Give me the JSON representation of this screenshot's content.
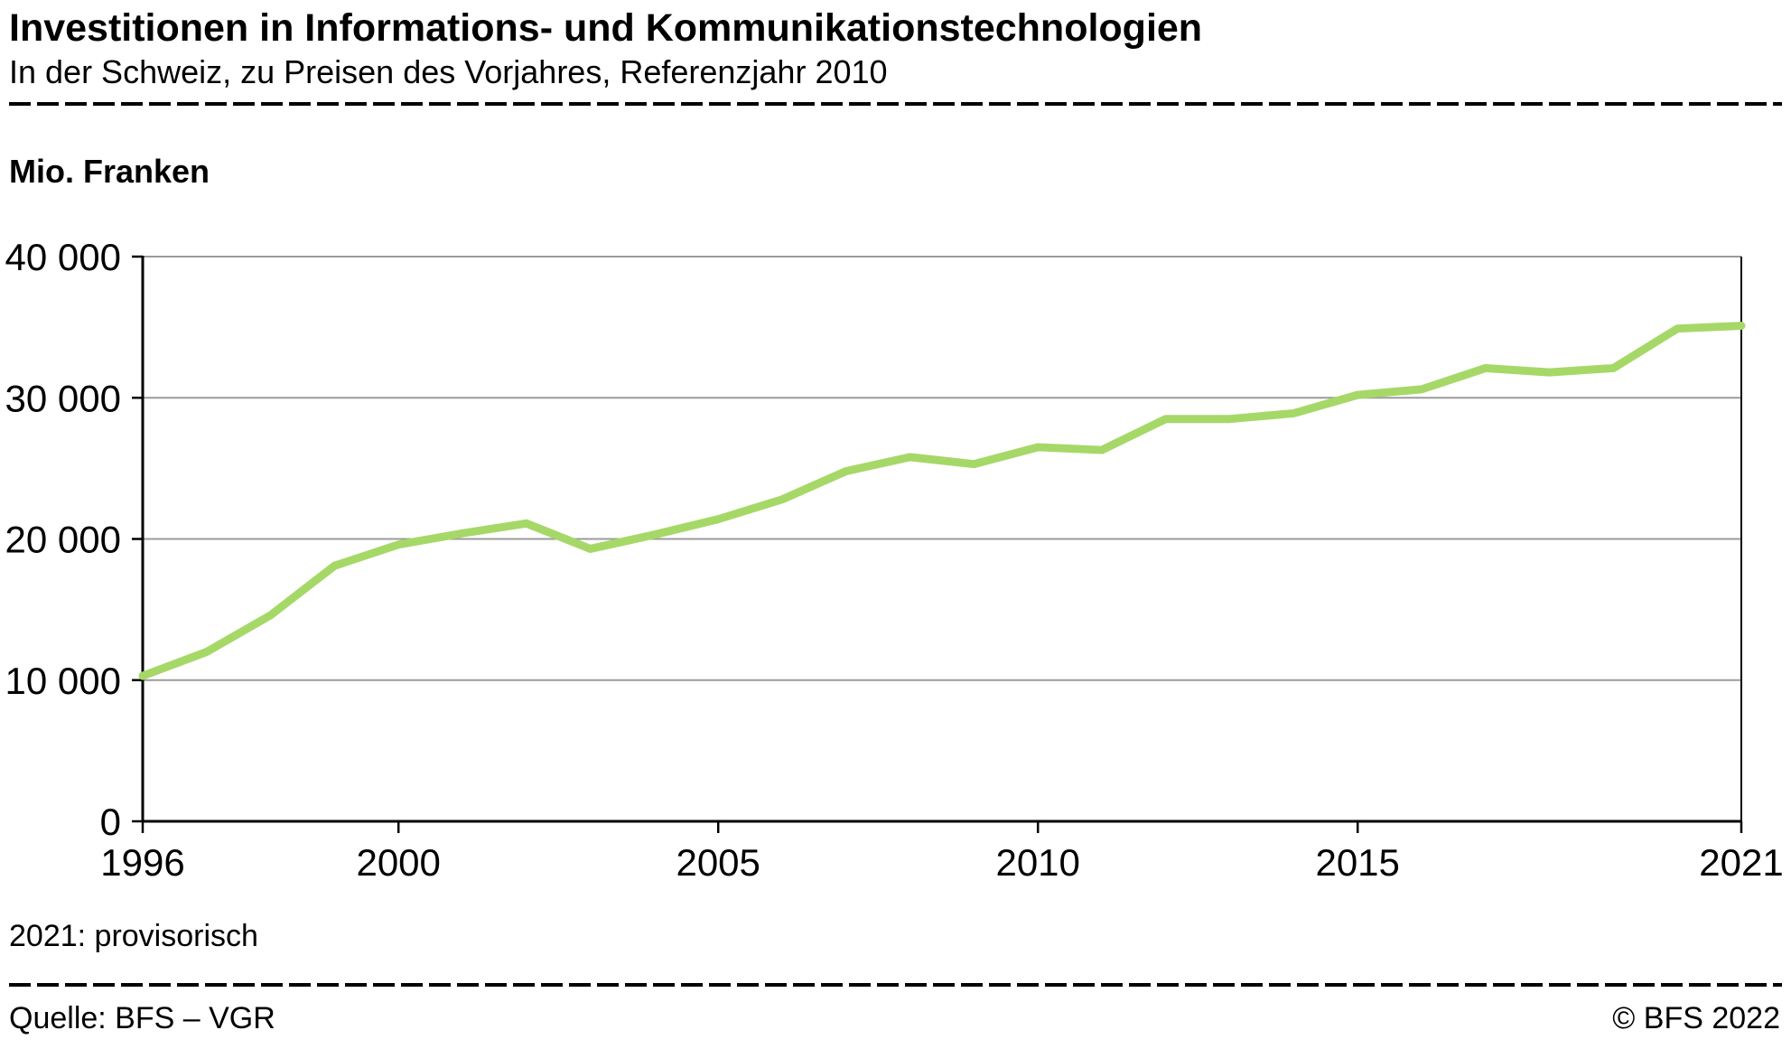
{
  "header": {
    "title": "Investitionen in Informations- und Kommunikationstechnologien",
    "subtitle": "In der Schweiz, zu Preisen des Vorjahres, Referenzjahr 2010"
  },
  "chart": {
    "unit_label": "Mio. Franken"
  },
  "chart_data": {
    "type": "line",
    "title": "Investitionen in Informations- und Kommunikationstechnologien",
    "ylabel": "Mio. Franken",
    "xlabel": "",
    "x": [
      1996,
      1997,
      1998,
      1999,
      2000,
      2001,
      2002,
      2003,
      2004,
      2005,
      2006,
      2007,
      2008,
      2009,
      2010,
      2011,
      2012,
      2013,
      2014,
      2015,
      2016,
      2017,
      2018,
      2019,
      2020,
      2021
    ],
    "values": [
      10300,
      12000,
      14600,
      18100,
      19600,
      20400,
      21100,
      19300,
      20300,
      21400,
      22800,
      24800,
      25800,
      25300,
      26500,
      26300,
      28500,
      28500,
      28900,
      30200,
      30600,
      32100,
      31800,
      32100,
      34900,
      35100
    ],
    "ylim": [
      0,
      40000
    ],
    "yticks": [
      0,
      10000,
      20000,
      30000,
      40000
    ],
    "ytick_labels": [
      "0",
      "10 000",
      "20 000",
      "30 000",
      "40 000"
    ],
    "xticks": [
      1996,
      2000,
      2005,
      2010,
      2015,
      2021
    ],
    "grid": true,
    "legend_position": "none",
    "line_color": "#a6d868",
    "grid_color": "#9b9b9b",
    "axis_color": "#000000"
  },
  "footnote": "2021: provisorisch",
  "footer": {
    "source": "Quelle: BFS – VGR",
    "copyright": "© BFS 2022"
  }
}
